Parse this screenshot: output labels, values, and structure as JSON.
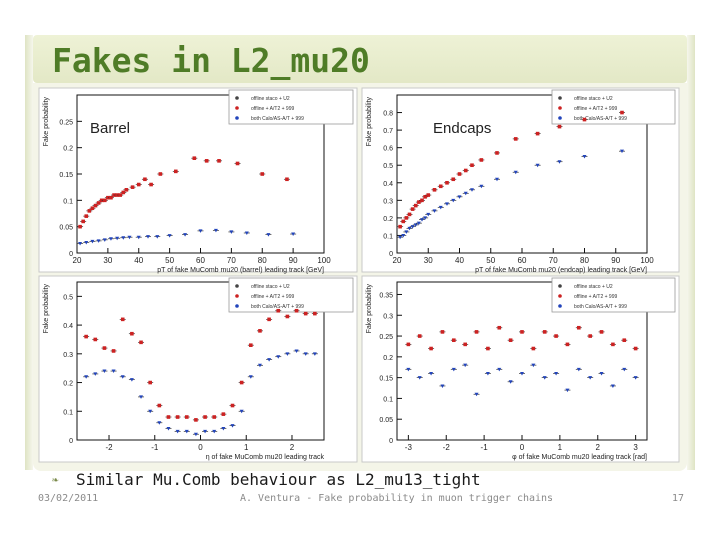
{
  "slide": {
    "title": "Fakes in L2_mu20",
    "bullet": "Similar Mu.Comb behaviour as L2_mu13_tight",
    "footer_date": "03/02/2011",
    "footer_center": "A. Ventura - Fake probability in muon trigger chains",
    "page_number": "17",
    "accent_color": "#4f7c27",
    "band_color": "#e6ebcb",
    "bullet_icon": "bullet-icon"
  },
  "legend": [
    "offline staco + U2",
    "offline + A/T2 + 999",
    "both Calo/AS-A/T + 999"
  ],
  "chart_data": [
    {
      "type": "scatter",
      "label": "Barrel",
      "xlabel": "pT of fake MuComb mu20 (barrel) leading track [GeV]",
      "ylabel": "Fake probability",
      "xlim": [
        20,
        100
      ],
      "ylim": [
        0,
        0.3
      ],
      "xticks": [
        "20",
        "30",
        "40",
        "50",
        "60",
        "70",
        "80",
        "90",
        "100"
      ],
      "yticks": [
        "0",
        "0.05",
        "0.1",
        "0.15",
        "0.2",
        "0.25"
      ],
      "series": [
        {
          "color": "#cc2222",
          "points": [
            [
              21,
              0.05
            ],
            [
              22,
              0.06
            ],
            [
              23,
              0.07
            ],
            [
              24,
              0.08
            ],
            [
              25,
              0.085
            ],
            [
              26,
              0.09
            ],
            [
              27,
              0.095
            ],
            [
              28,
              0.1
            ],
            [
              29,
              0.1
            ],
            [
              30,
              0.105
            ],
            [
              31,
              0.105
            ],
            [
              32,
              0.11
            ],
            [
              33,
              0.11
            ],
            [
              34,
              0.11
            ],
            [
              35,
              0.115
            ],
            [
              36,
              0.12
            ],
            [
              38,
              0.125
            ],
            [
              40,
              0.13
            ],
            [
              42,
              0.14
            ],
            [
              44,
              0.13
            ],
            [
              47,
              0.15
            ],
            [
              52,
              0.155
            ],
            [
              58,
              0.18
            ],
            [
              62,
              0.175
            ],
            [
              66,
              0.175
            ],
            [
              72,
              0.17
            ],
            [
              80,
              0.15
            ],
            [
              88,
              0.14
            ]
          ]
        },
        {
          "color": "#2244bb",
          "points": [
            [
              21,
              0.018
            ],
            [
              23,
              0.02
            ],
            [
              25,
              0.022
            ],
            [
              27,
              0.023
            ],
            [
              29,
              0.025
            ],
            [
              31,
              0.027
            ],
            [
              33,
              0.028
            ],
            [
              35,
              0.029
            ],
            [
              37,
              0.03
            ],
            [
              40,
              0.03
            ],
            [
              43,
              0.031
            ],
            [
              46,
              0.031
            ],
            [
              50,
              0.033
            ],
            [
              55,
              0.035
            ],
            [
              60,
              0.042
            ],
            [
              65,
              0.043
            ],
            [
              70,
              0.04
            ],
            [
              75,
              0.038
            ],
            [
              82,
              0.035
            ],
            [
              90,
              0.036
            ]
          ]
        }
      ]
    },
    {
      "type": "scatter",
      "label": "Endcaps",
      "xlabel": "pT of fake MuComb mu20 (endcap) leading track [GeV]",
      "ylabel": "Fake probability",
      "xlim": [
        20,
        100
      ],
      "ylim": [
        0,
        0.9
      ],
      "xticks": [
        "20",
        "30",
        "40",
        "50",
        "60",
        "70",
        "80",
        "90",
        "100"
      ],
      "yticks": [
        "0",
        "0.1",
        "0.2",
        "0.3",
        "0.4",
        "0.5",
        "0.6",
        "0.7",
        "0.8"
      ],
      "series": [
        {
          "color": "#cc2222",
          "points": [
            [
              21,
              0.15
            ],
            [
              22,
              0.18
            ],
            [
              23,
              0.2
            ],
            [
              24,
              0.22
            ],
            [
              25,
              0.25
            ],
            [
              26,
              0.27
            ],
            [
              27,
              0.29
            ],
            [
              28,
              0.3
            ],
            [
              29,
              0.32
            ],
            [
              30,
              0.33
            ],
            [
              32,
              0.36
            ],
            [
              34,
              0.38
            ],
            [
              36,
              0.4
            ],
            [
              38,
              0.42
            ],
            [
              40,
              0.45
            ],
            [
              42,
              0.47
            ],
            [
              44,
              0.5
            ],
            [
              47,
              0.53
            ],
            [
              52,
              0.57
            ],
            [
              58,
              0.65
            ],
            [
              65,
              0.68
            ],
            [
              72,
              0.72
            ],
            [
              80,
              0.76
            ],
            [
              92,
              0.8
            ]
          ]
        },
        {
          "color": "#2244bb",
          "points": [
            [
              21,
              0.09
            ],
            [
              22,
              0.1
            ],
            [
              23,
              0.12
            ],
            [
              24,
              0.14
            ],
            [
              25,
              0.15
            ],
            [
              26,
              0.16
            ],
            [
              27,
              0.17
            ],
            [
              28,
              0.19
            ],
            [
              29,
              0.2
            ],
            [
              30,
              0.22
            ],
            [
              32,
              0.24
            ],
            [
              34,
              0.26
            ],
            [
              36,
              0.28
            ],
            [
              38,
              0.3
            ],
            [
              40,
              0.32
            ],
            [
              42,
              0.34
            ],
            [
              44,
              0.36
            ],
            [
              47,
              0.38
            ],
            [
              52,
              0.42
            ],
            [
              58,
              0.46
            ],
            [
              65,
              0.5
            ],
            [
              72,
              0.52
            ],
            [
              80,
              0.55
            ],
            [
              92,
              0.58
            ]
          ]
        }
      ]
    },
    {
      "type": "scatter",
      "label": "",
      "xlabel": "η of fake MuComb mu20 leading track",
      "ylabel": "Fake probability",
      "xlim": [
        -2.7,
        2.7
      ],
      "ylim": [
        0,
        0.55
      ],
      "xticks": [
        "-2",
        "-1",
        "0",
        "1",
        "2"
      ],
      "yticks": [
        "0",
        "0.1",
        "0.2",
        "0.3",
        "0.4",
        "0.5"
      ],
      "series": [
        {
          "color": "#cc2222",
          "points": [
            [
              -2.5,
              0.36
            ],
            [
              -2.3,
              0.35
            ],
            [
              -2.1,
              0.32
            ],
            [
              -1.9,
              0.31
            ],
            [
              -1.7,
              0.42
            ],
            [
              -1.5,
              0.37
            ],
            [
              -1.3,
              0.34
            ],
            [
              -1.1,
              0.2
            ],
            [
              -0.9,
              0.12
            ],
            [
              -0.7,
              0.08
            ],
            [
              -0.5,
              0.08
            ],
            [
              -0.3,
              0.08
            ],
            [
              -0.1,
              0.07
            ],
            [
              0.1,
              0.08
            ],
            [
              0.3,
              0.08
            ],
            [
              0.5,
              0.09
            ],
            [
              0.7,
              0.12
            ],
            [
              0.9,
              0.2
            ],
            [
              1.1,
              0.33
            ],
            [
              1.3,
              0.38
            ],
            [
              1.5,
              0.42
            ],
            [
              1.7,
              0.45
            ],
            [
              1.9,
              0.43
            ],
            [
              2.1,
              0.45
            ],
            [
              2.3,
              0.44
            ],
            [
              2.5,
              0.44
            ]
          ]
        },
        {
          "color": "#2244bb",
          "points": [
            [
              -2.5,
              0.22
            ],
            [
              -2.3,
              0.23
            ],
            [
              -2.1,
              0.24
            ],
            [
              -1.9,
              0.24
            ],
            [
              -1.7,
              0.22
            ],
            [
              -1.5,
              0.21
            ],
            [
              -1.3,
              0.15
            ],
            [
              -1.1,
              0.1
            ],
            [
              -0.9,
              0.06
            ],
            [
              -0.7,
              0.04
            ],
            [
              -0.5,
              0.03
            ],
            [
              -0.3,
              0.03
            ],
            [
              -0.1,
              0.02
            ],
            [
              0.1,
              0.03
            ],
            [
              0.3,
              0.03
            ],
            [
              0.5,
              0.04
            ],
            [
              0.7,
              0.05
            ],
            [
              0.9,
              0.1
            ],
            [
              1.1,
              0.22
            ],
            [
              1.3,
              0.26
            ],
            [
              1.5,
              0.28
            ],
            [
              1.7,
              0.29
            ],
            [
              1.9,
              0.3
            ],
            [
              2.1,
              0.31
            ],
            [
              2.3,
              0.3
            ],
            [
              2.5,
              0.3
            ]
          ]
        }
      ]
    },
    {
      "type": "scatter",
      "label": "",
      "xlabel": "φ of fake MuComb mu20 leading track [rad]",
      "ylabel": "Fake probability",
      "xlim": [
        -3.3,
        3.3
      ],
      "ylim": [
        0,
        0.38
      ],
      "xticks": [
        "-3",
        "-2",
        "-1",
        "0",
        "1",
        "2",
        "3"
      ],
      "yticks": [
        "0",
        "0.05",
        "0.1",
        "0.15",
        "0.2",
        "0.25",
        "0.3",
        "0.35"
      ],
      "series": [
        {
          "color": "#cc2222",
          "points": [
            [
              -3.0,
              0.23
            ],
            [
              -2.7,
              0.25
            ],
            [
              -2.4,
              0.22
            ],
            [
              -2.1,
              0.26
            ],
            [
              -1.8,
              0.24
            ],
            [
              -1.5,
              0.23
            ],
            [
              -1.2,
              0.26
            ],
            [
              -0.9,
              0.22
            ],
            [
              -0.6,
              0.27
            ],
            [
              -0.3,
              0.24
            ],
            [
              0.0,
              0.26
            ],
            [
              0.3,
              0.22
            ],
            [
              0.6,
              0.26
            ],
            [
              0.9,
              0.25
            ],
            [
              1.2,
              0.23
            ],
            [
              1.5,
              0.27
            ],
            [
              1.8,
              0.25
            ],
            [
              2.1,
              0.26
            ],
            [
              2.4,
              0.23
            ],
            [
              2.7,
              0.24
            ],
            [
              3.0,
              0.22
            ]
          ]
        },
        {
          "color": "#2244bb",
          "points": [
            [
              -3.0,
              0.17
            ],
            [
              -2.7,
              0.15
            ],
            [
              -2.4,
              0.16
            ],
            [
              -2.1,
              0.13
            ],
            [
              -1.8,
              0.17
            ],
            [
              -1.5,
              0.18
            ],
            [
              -1.2,
              0.11
            ],
            [
              -0.9,
              0.16
            ],
            [
              -0.6,
              0.17
            ],
            [
              -0.3,
              0.14
            ],
            [
              0.0,
              0.16
            ],
            [
              0.3,
              0.18
            ],
            [
              0.6,
              0.15
            ],
            [
              0.9,
              0.16
            ],
            [
              1.2,
              0.12
            ],
            [
              1.5,
              0.17
            ],
            [
              1.8,
              0.15
            ],
            [
              2.1,
              0.16
            ],
            [
              2.4,
              0.13
            ],
            [
              2.7,
              0.17
            ],
            [
              3.0,
              0.15
            ]
          ]
        }
      ]
    }
  ]
}
